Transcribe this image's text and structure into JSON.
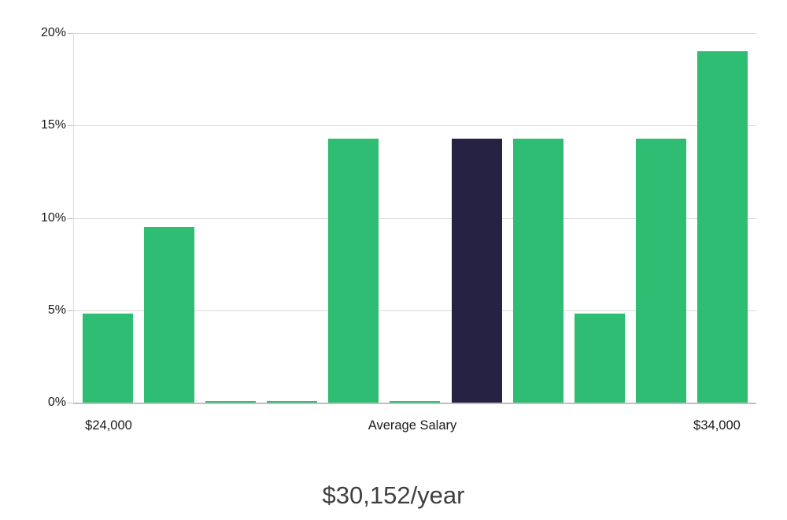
{
  "chart_data": {
    "type": "bar",
    "title": "$30,152/year",
    "values": [
      4.8,
      9.5,
      0.1,
      0.1,
      14.3,
      0.1,
      14.3,
      14.3,
      4.8,
      14.3,
      19.0
    ],
    "highlighted_index": 6,
    "highlighted_meaning": "Average Salary",
    "ylim": [
      0,
      20
    ],
    "y_ticks": [
      {
        "value": 0,
        "label": "0%"
      },
      {
        "value": 5,
        "label": "5%"
      },
      {
        "value": 10,
        "label": "10%"
      },
      {
        "value": 15,
        "label": "15%"
      },
      {
        "value": 20,
        "label": "20%"
      }
    ],
    "x_labels": {
      "min": "$24,000",
      "center": "Average Salary",
      "max": "$34,000"
    },
    "grid": true,
    "legend_position": "none",
    "colors": {
      "bar": "#2ebd72",
      "highlighted_bar": "#262243",
      "gridline": "#dadada",
      "axis_line": "#bfbfbf",
      "tick_text": "#1a1a1a",
      "title_text": "#3f3f3f",
      "background": "#ffffff"
    }
  }
}
